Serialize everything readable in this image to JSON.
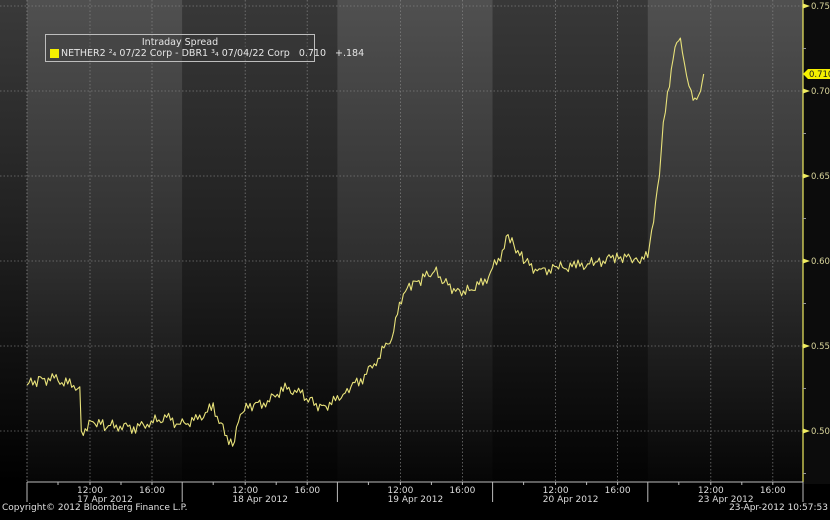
{
  "legend": {
    "title": "Intraday Spread",
    "series_label": "NETHER2 ²₄ 07/22 Corp - DBR1 ³₄ 07/04/22 Corp",
    "last_value": "0.710",
    "change": "+.184",
    "color": "#f5f000"
  },
  "footer": {
    "copyright": "Copyright© 2012 Bloomberg Finance L.P.",
    "timestamp": "23-Apr-2012 10:57:53"
  },
  "last_price_tag": "0.710",
  "colors": {
    "line": "#e8e27a",
    "axis": "#f0ec60",
    "band_light": "#4a4a4a",
    "band_dark": "#2c2c2c"
  },
  "chart_data": {
    "type": "line",
    "title": "Intraday Spread",
    "xlabel": "",
    "ylabel": "",
    "ylim": [
      0.47,
      0.752
    ],
    "y_ticks": [
      "0.500",
      "0.550",
      "0.600",
      "0.650",
      "0.700",
      "0.750"
    ],
    "x_days": [
      "17 Apr 2012",
      "18 Apr 2012",
      "19 Apr 2012",
      "20 Apr 2012",
      "23 Apr 2012"
    ],
    "x_hour_ticks": [
      "12:00",
      "16:00"
    ],
    "grid": true,
    "legend_position": "top-left",
    "series": [
      {
        "name": "NETHER2 07/22 Corp - DBR1 07/04/22 Corp",
        "x_pct": [
          0,
          1.5,
          3.5,
          5.5,
          6.8,
          7.0,
          8.5,
          10,
          12,
          14,
          16,
          18,
          19.5,
          20,
          22,
          24,
          25.5,
          26.5,
          27.5,
          29,
          31,
          33,
          35,
          36.5,
          38,
          40,
          41,
          43,
          45,
          47,
          48.5,
          49.5,
          51,
          52.5,
          54,
          55.5,
          57,
          59,
          61,
          62,
          63,
          64,
          66,
          68.5,
          71,
          73.5,
          76,
          78.5,
          80,
          80.5,
          81.5,
          82,
          82.8,
          83.5,
          84.2,
          85,
          85.6,
          86.3,
          86.8,
          87.2
        ],
        "values": [
          0.527,
          0.53,
          0.531,
          0.527,
          0.526,
          0.499,
          0.506,
          0.503,
          0.503,
          0.502,
          0.505,
          0.508,
          0.504,
          0.504,
          0.507,
          0.514,
          0.499,
          0.492,
          0.511,
          0.515,
          0.517,
          0.525,
          0.523,
          0.518,
          0.514,
          0.518,
          0.524,
          0.53,
          0.541,
          0.556,
          0.581,
          0.585,
          0.59,
          0.594,
          0.587,
          0.582,
          0.583,
          0.588,
          0.603,
          0.616,
          0.607,
          0.6,
          0.594,
          0.596,
          0.597,
          0.599,
          0.603,
          0.601,
          0.602,
          0.618,
          0.65,
          0.682,
          0.703,
          0.726,
          0.728,
          0.709,
          0.697,
          0.695,
          0.7,
          0.71
        ]
      }
    ]
  }
}
